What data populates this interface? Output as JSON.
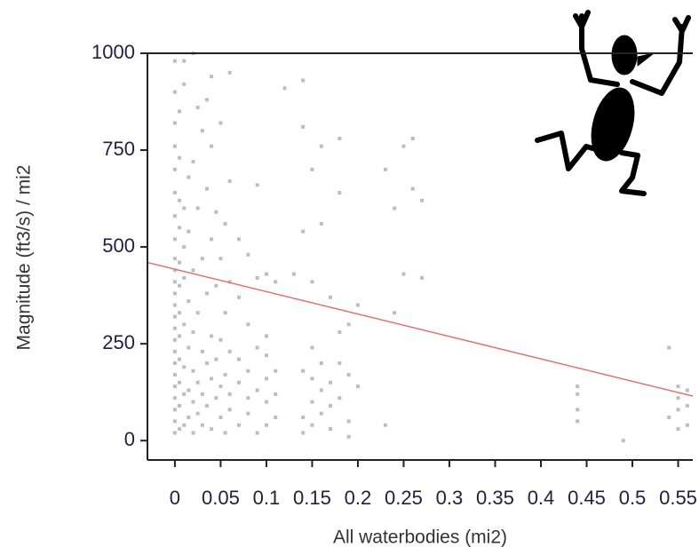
{
  "chart_data": {
    "type": "scatter",
    "x_label": "All waterbodies (mi2)",
    "y_label": "Magnitude (ft3/s) / mi2",
    "xlim": [
      -0.03,
      0.566
    ],
    "ylim": [
      -50,
      1000
    ],
    "xticks": [
      0,
      0.05,
      0.1,
      0.15,
      0.2,
      0.25,
      0.3,
      0.35,
      0.4,
      0.45,
      0.5,
      0.55
    ],
    "yticks": [
      0,
      250,
      500,
      750,
      1000
    ],
    "series": [
      {
        "color": "#bdbdbd",
        "x": [
          0,
          0,
          0,
          0,
          0,
          0,
          0,
          0,
          0,
          0,
          0,
          0,
          0,
          0,
          0,
          0,
          0,
          0,
          0,
          0,
          0,
          0,
          0,
          0,
          0.005,
          0.005,
          0.005,
          0.005,
          0.005,
          0.005,
          0.005,
          0.005,
          0.005,
          0.005,
          0.005,
          0.005,
          0.01,
          0.01,
          0.01,
          0.01,
          0.01,
          0.01,
          0.01,
          0.01,
          0.01,
          0.015,
          0.015,
          0.015,
          0.015,
          0.015,
          0.015,
          0.02,
          0.02,
          0.02,
          0.02,
          0.02,
          0.02,
          0.02,
          0.025,
          0.025,
          0.025,
          0.025,
          0.025,
          0.03,
          0.03,
          0.03,
          0.03,
          0.03,
          0.035,
          0.035,
          0.035,
          0.035,
          0.035,
          0.04,
          0.04,
          0.04,
          0.04,
          0.04,
          0.04,
          0.045,
          0.045,
          0.045,
          0.045,
          0.05,
          0.05,
          0.05,
          0.05,
          0.05,
          0.055,
          0.055,
          0.055,
          0.055,
          0.06,
          0.06,
          0.06,
          0.06,
          0.06,
          0.06,
          0.07,
          0.07,
          0.07,
          0.07,
          0.07,
          0.08,
          0.08,
          0.08,
          0.08,
          0.08,
          0.09,
          0.09,
          0.09,
          0.09,
          0.09,
          0.1,
          0.1,
          0.1,
          0.1,
          0.1,
          0.1,
          0.11,
          0.11,
          0.11,
          0.11,
          0.12,
          0.13,
          0.14,
          0.14,
          0.14,
          0.14,
          0.14,
          0.14,
          0.15,
          0.15,
          0.15,
          0.15,
          0.15,
          0.15,
          0.16,
          0.16,
          0.16,
          0.16,
          0.16,
          0.17,
          0.17,
          0.17,
          0.17,
          0.18,
          0.18,
          0.18,
          0.18,
          0.18,
          0.19,
          0.19,
          0.19,
          0.19,
          0.2,
          0.2,
          0.23,
          0.23,
          0.24,
          0.24,
          0.25,
          0.25,
          0.26,
          0.26,
          0.27,
          0.27,
          0.44,
          0.44,
          0.44,
          0.44,
          0.49,
          0.54,
          0.54,
          0.55,
          0.55,
          0.55,
          0.55,
          0.56,
          0.56,
          0.56
        ],
        "values": [
          20,
          50,
          80,
          110,
          140,
          170,
          200,
          230,
          260,
          290,
          320,
          350,
          380,
          410,
          440,
          470,
          520,
          580,
          640,
          700,
          760,
          820,
          900,
          980,
          30,
          90,
          150,
          210,
          270,
          330,
          400,
          460,
          550,
          620,
          730,
          850,
          40,
          120,
          190,
          300,
          420,
          500,
          600,
          920,
          980,
          60,
          130,
          240,
          360,
          540,
          680,
          20,
          100,
          180,
          280,
          440,
          720,
          1000,
          70,
          150,
          330,
          600,
          860,
          40,
          120,
          230,
          470,
          800,
          90,
          200,
          380,
          650,
          880,
          30,
          160,
          270,
          520,
          760,
          940,
          110,
          210,
          400,
          590,
          60,
          140,
          260,
          470,
          820,
          20,
          170,
          330,
          560,
          80,
          120,
          230,
          410,
          670,
          950,
          40,
          150,
          210,
          370,
          520,
          70,
          110,
          180,
          300,
          480,
          20,
          130,
          240,
          420,
          660,
          40,
          100,
          160,
          220,
          270,
          430,
          60,
          120,
          180,
          410,
          910,
          430,
          20,
          60,
          180,
          540,
          810,
          930,
          40,
          100,
          160,
          240,
          410,
          700,
          70,
          130,
          200,
          560,
          760,
          30,
          90,
          150,
          370,
          110,
          200,
          280,
          640,
          780,
          10,
          50,
          170,
          300,
          140,
          350,
          40,
          700,
          330,
          600,
          760,
          430,
          650,
          780,
          620,
          420,
          50,
          80,
          120,
          140,
          0,
          60,
          240,
          30,
          80,
          110,
          140,
          40,
          90,
          130
        ]
      }
    ],
    "trend_line": {
      "color": "#e07070",
      "x": [
        -0.03,
        0.566
      ],
      "values": [
        460,
        115
      ]
    }
  }
}
